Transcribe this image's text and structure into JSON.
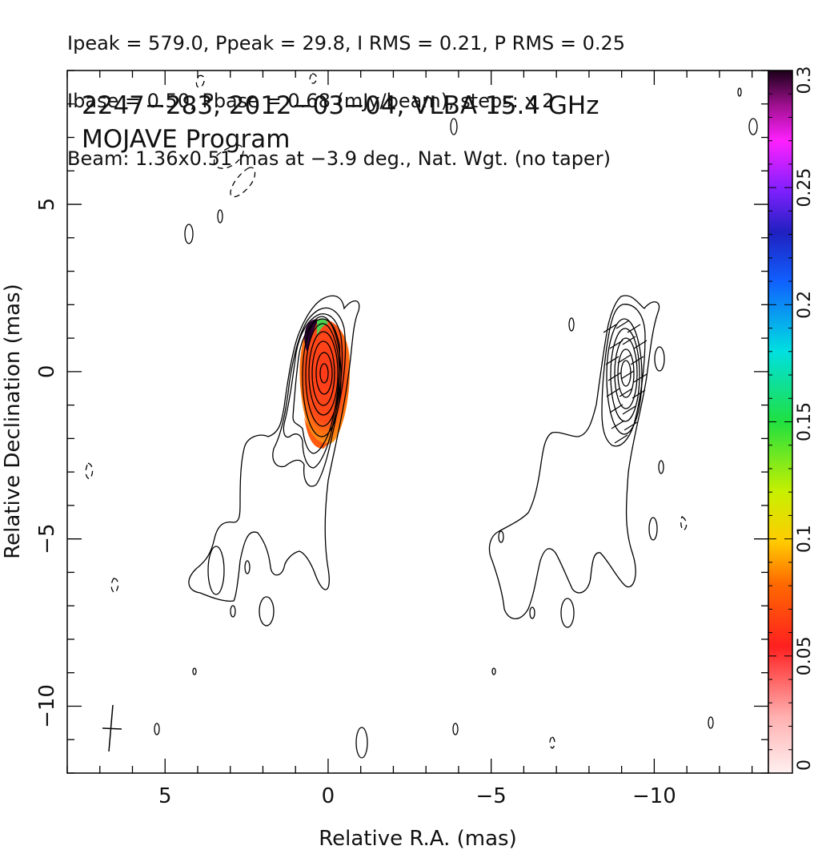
{
  "header": {
    "line1": "Ipeak = 579.0, Ppeak = 29.8, I RMS = 0.21, P RMS = 0.25",
    "line2": "Ibase = 0.50, Pbase = 0.68 (mJy/beam), steps: x 2",
    "line3": "Beam: 1.36x0.51 mas at −3.9 deg., Nat. Wgt. (no taper)"
  },
  "panel": {
    "title": "2247−283, 2012−03−04, VLBA 15.4 GHz",
    "subtitle": "MOJAVE Program"
  },
  "colors": {
    "contour": "#000000",
    "axis": "#000000",
    "colorbar_top": "#1a0018",
    "colorbar_bottom": "#ffe8e8"
  },
  "chart_data": {
    "type": "heatmap",
    "xlabel": "Relative R.A. (mas)",
    "ylabel": "Relative Declination (mas)",
    "xlim": [
      8.0,
      -13.5
    ],
    "ylim": [
      -12,
      9
    ],
    "x_ticks": [
      {
        "value": 5,
        "label": "5"
      },
      {
        "value": 0,
        "label": "0"
      },
      {
        "value": -5,
        "label": "−5"
      },
      {
        "value": -10,
        "label": "−10"
      }
    ],
    "y_ticks": [
      {
        "value": 5,
        "label": "5"
      },
      {
        "value": 0,
        "label": "0"
      },
      {
        "value": -5,
        "label": "−5"
      },
      {
        "value": -10,
        "label": "−10"
      }
    ],
    "colorbar": {
      "range": [
        0,
        0.3
      ],
      "ticks": [
        {
          "value": 0,
          "label": "0"
        },
        {
          "value": 0.05,
          "label": "0.05"
        },
        {
          "value": 0.1,
          "label": "0.1"
        },
        {
          "value": 0.15,
          "label": "0.15"
        },
        {
          "value": 0.2,
          "label": "0.2"
        },
        {
          "value": 0.25,
          "label": "0.25"
        },
        {
          "value": 0.3,
          "label": "0.3"
        }
      ]
    },
    "core_position": [
      0,
      0
    ],
    "beam": {
      "major": 1.36,
      "minor": 0.51,
      "pa_deg": -3.9
    }
  }
}
